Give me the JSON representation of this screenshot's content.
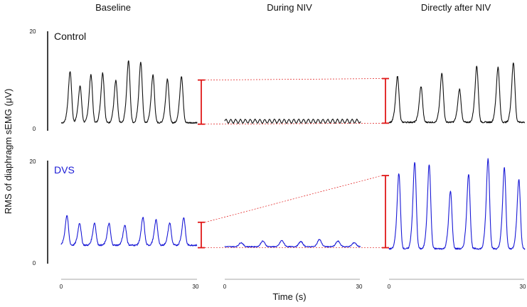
{
  "chart_data": {
    "type": "line",
    "title": "",
    "ylabel": "RMS of diaphragm sEMG (μV)",
    "xlabel": "Time (s)",
    "phases": [
      "Baseline",
      "During NIV",
      "Directly after NIV"
    ],
    "x_range": [
      0,
      30
    ],
    "x_ticks": [
      "0",
      "30"
    ],
    "y_range": [
      0,
      20
    ],
    "y_ticks": [
      "20",
      "0"
    ],
    "colors": {
      "Control": "#111111",
      "DVS": "#1a1ad6",
      "bracket": "#e01818"
    },
    "panels": [
      {
        "group": "Control",
        "label": "Control",
        "baseline": {
          "floor": 1.5,
          "peaks": [
            [
              2,
              11.3
            ],
            [
              4.2,
              8.5
            ],
            [
              6.6,
              10.7
            ],
            [
              9.2,
              11.0
            ],
            [
              12.1,
              9.5
            ],
            [
              14.9,
              13.4
            ],
            [
              17.6,
              13.1
            ],
            [
              20.3,
              10.6
            ],
            [
              23.5,
              9.9
            ],
            [
              26.6,
              10.4
            ]
          ]
        },
        "during_niv": {
          "floor": 1.4,
          "ripple_count": 28,
          "ripple_amplitude": 0.8
        },
        "after_niv": {
          "floor": 1.6,
          "peaks": [
            [
              1.9,
              10.4
            ],
            [
              7.1,
              8.4
            ],
            [
              11.7,
              10.9
            ],
            [
              15.6,
              7.9
            ],
            [
              19.4,
              12.3
            ],
            [
              24.1,
              12.1
            ],
            [
              27.5,
              13.0
            ]
          ]
        },
        "brackets": {
          "baseline": [
            1.2,
            10.2
          ],
          "after_niv": [
            1.4,
            10.5
          ]
        }
      },
      {
        "group": "DVS",
        "label": "DVS",
        "baseline": {
          "floor": 3.5,
          "peaks": [
            [
              1.3,
              9.0
            ],
            [
              4.1,
              7.6
            ],
            [
              7.4,
              7.6
            ],
            [
              10.6,
              7.5
            ],
            [
              14.1,
              7.2
            ],
            [
              18.1,
              8.6
            ],
            [
              21.0,
              8.2
            ],
            [
              24.0,
              7.6
            ],
            [
              27.1,
              8.6
            ]
          ]
        },
        "during_niv": {
          "floor": 3.2,
          "bumps": [
            [
              3.6,
              4.0
            ],
            [
              8.4,
              4.3
            ],
            [
              12.6,
              4.4
            ],
            [
              16.8,
              4.2
            ],
            [
              20.9,
              4.6
            ],
            [
              25.0,
              4.3
            ],
            [
              28.6,
              4.0
            ]
          ]
        },
        "after_niv": {
          "floor": 2.8,
          "peaks": [
            [
              2.2,
              16.7
            ],
            [
              5.7,
              18.8
            ],
            [
              8.9,
              18.3
            ],
            [
              13.6,
              13.4
            ],
            [
              17.6,
              16.6
            ],
            [
              21.9,
              19.4
            ],
            [
              25.5,
              17.7
            ],
            [
              28.7,
              15.6
            ]
          ]
        },
        "brackets": {
          "baseline": [
            3.0,
            8.0
          ],
          "after_niv": [
            3.0,
            17.2
          ]
        }
      }
    ]
  }
}
